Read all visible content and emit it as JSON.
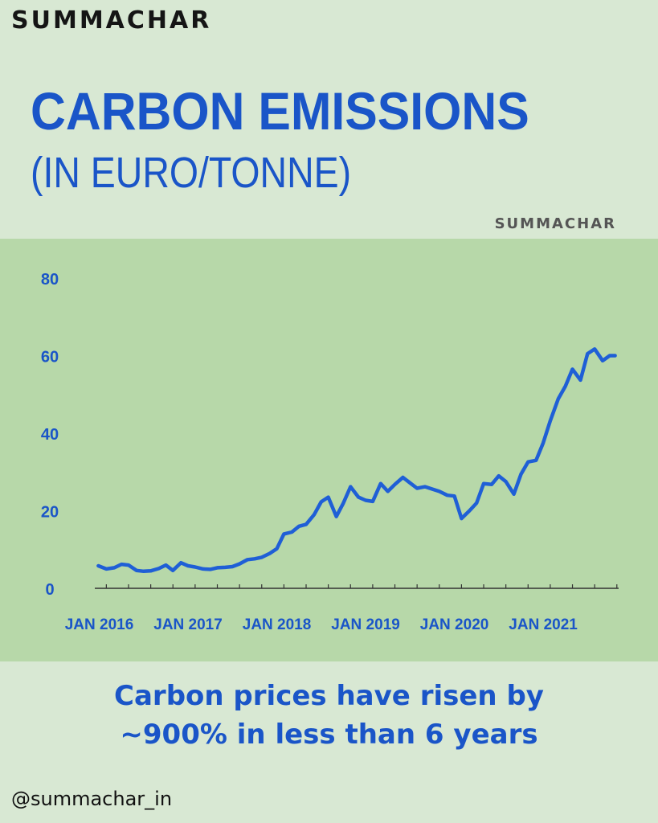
{
  "brand": {
    "top_logo": "SUMMACHAR",
    "chart_logo": "SUMMACHAR"
  },
  "title": "CARBON EMISSIONS",
  "subtitle": "(IN EURO/TONNE)",
  "caption_line1": "Carbon prices have risen by",
  "caption_line2": "~900% in less than 6 years",
  "handle": "@summachar_in",
  "colors": {
    "background": "#d8e8d3",
    "panel": "#b7d8a9",
    "accent": "#1a55c8",
    "line": "#1f5fd6"
  },
  "chart_data": {
    "type": "line",
    "title": "CARBON EMISSIONS",
    "ylabel": "",
    "xlabel": "",
    "ylim": [
      0,
      80
    ],
    "yticks": [
      0,
      20,
      40,
      60,
      80
    ],
    "xticks": [
      {
        "label": "JAN 2016",
        "x": 2016.0
      },
      {
        "label": "JAN 2017",
        "x": 2017.0
      },
      {
        "label": "JAN 2018",
        "x": 2018.0
      },
      {
        "label": "JAN 2019",
        "x": 2019.0
      },
      {
        "label": "JAN 2020",
        "x": 2020.0
      },
      {
        "label": "JAN 2021",
        "x": 2021.0
      }
    ],
    "xlim": [
      2015.95,
      2021.85
    ],
    "grid": false,
    "series": [
      {
        "x": [
          2015.99,
          2016.08,
          2016.17,
          2016.25,
          2016.33,
          2016.42,
          2016.5,
          2016.58,
          2016.67,
          2016.75,
          2016.83,
          2016.92,
          2017.0,
          2017.08,
          2017.17,
          2017.25,
          2017.33,
          2017.42,
          2017.5,
          2017.58,
          2017.67,
          2017.75,
          2017.83,
          2017.92,
          2018.0,
          2018.08,
          2018.17,
          2018.25,
          2018.33,
          2018.42,
          2018.5,
          2018.58,
          2018.67,
          2018.75,
          2018.83,
          2018.92,
          2019.0,
          2019.08,
          2019.17,
          2019.25,
          2019.33,
          2019.42,
          2019.5,
          2019.58,
          2019.67,
          2019.75,
          2019.83,
          2019.92,
          2020.0,
          2020.08,
          2020.17,
          2020.25,
          2020.33,
          2020.42,
          2020.5,
          2020.58,
          2020.67,
          2020.75,
          2020.83,
          2020.92,
          2021.0,
          2021.08,
          2021.17,
          2021.25,
          2021.33,
          2021.42,
          2021.5,
          2021.58,
          2021.67,
          2021.75,
          2021.81
        ],
        "values": [
          5.8,
          5.0,
          5.3,
          6.2,
          6.0,
          4.6,
          4.4,
          4.5,
          5.1,
          6.0,
          4.6,
          6.6,
          5.8,
          5.5,
          5.0,
          4.9,
          5.3,
          5.4,
          5.6,
          6.3,
          7.4,
          7.6,
          8.0,
          9.0,
          10.2,
          14.0,
          14.5,
          16.0,
          16.5,
          19.0,
          22.3,
          23.5,
          18.5,
          22.0,
          26.2,
          23.5,
          22.7,
          22.4,
          27.0,
          25.0,
          26.8,
          28.6,
          27.2,
          25.8,
          26.2,
          25.6,
          25.0,
          24.0,
          23.8,
          18.0,
          20.0,
          22.0,
          27.0,
          26.8,
          29.0,
          27.5,
          24.3,
          29.4,
          32.6,
          33.0,
          37.5,
          43.2,
          48.9,
          52.1,
          56.5,
          53.7,
          60.5,
          61.7,
          58.7,
          60.0,
          60.0
        ]
      }
    ]
  }
}
